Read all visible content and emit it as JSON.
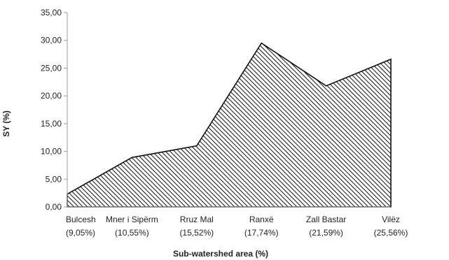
{
  "chart_data": {
    "type": "area",
    "title": "",
    "xlabel": "Sub-watershed area (%)",
    "ylabel": "SY (%)",
    "ylim": [
      0,
      35
    ],
    "yticks": [
      "0,00",
      "5,00",
      "10,00",
      "15,00",
      "20,00",
      "25,00",
      "30,00",
      "35,00"
    ],
    "categories": [
      {
        "name": "Bulcesh",
        "area": "(9,05%)"
      },
      {
        "name": "Mner i Sipërm",
        "area": "(10,55%)"
      },
      {
        "name": "Rruz Mal",
        "area": "(15,52%)"
      },
      {
        "name": "Ranxë",
        "area": "(17,74%)"
      },
      {
        "name": "Zall Bastar",
        "area": "(21,59%)"
      },
      {
        "name": "Vilëz",
        "area": "(25,56%)"
      }
    ],
    "series": [
      {
        "values": [
          2.3,
          8.9,
          11.0,
          29.5,
          21.8,
          26.6
        ],
        "fill": "diagonal-hatch",
        "color": "#000000"
      }
    ],
    "grid": false,
    "legend": "none"
  }
}
